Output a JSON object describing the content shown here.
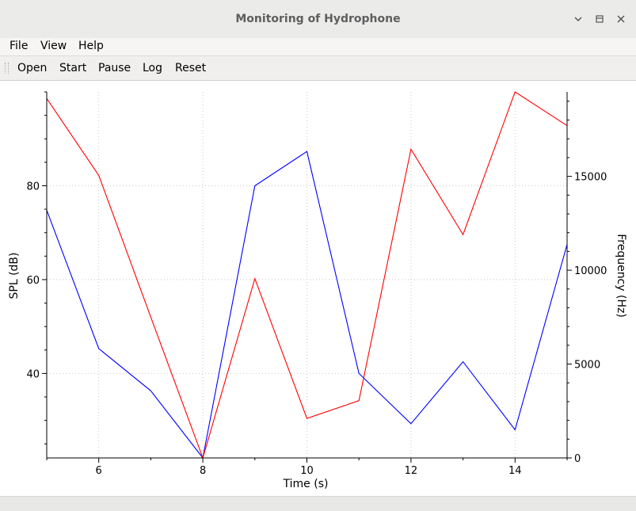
{
  "window": {
    "title": "Monitoring of Hydrophone"
  },
  "menu": {
    "items": [
      "File",
      "View",
      "Help"
    ]
  },
  "toolbar": {
    "items": [
      "Open",
      "Start",
      "Pause",
      "Log",
      "Reset"
    ]
  },
  "chart_data": {
    "type": "line",
    "title": "",
    "xlabel": "Time (s)",
    "ylabel_left": "SPL (dB)",
    "ylabel_right": "Frequency (Hz)",
    "x": [
      5,
      6,
      7,
      8,
      9,
      10,
      11,
      12,
      13,
      14,
      15
    ],
    "xlim": [
      5,
      15
    ],
    "ylim_left": [
      22,
      100
    ],
    "ylim_right": [
      0,
      19500
    ],
    "x_ticks": [
      6,
      8,
      10,
      12,
      14
    ],
    "y_ticks_left": [
      40,
      60,
      80
    ],
    "y_ticks_right": [
      0,
      5000,
      10000,
      15000
    ],
    "grid": true,
    "series": [
      {
        "axis": "left",
        "color": "#0000ff",
        "values": [
          74.8,
          45.3,
          36.3,
          22.0,
          80.0,
          87.3,
          40.0,
          29.3,
          42.5,
          28.0,
          67.5
        ]
      },
      {
        "axis": "right",
        "color": "#ff0000",
        "values": [
          19150,
          15050,
          7500,
          0,
          9550,
          2100,
          3050,
          16450,
          11900,
          19500,
          17700
        ]
      }
    ]
  }
}
